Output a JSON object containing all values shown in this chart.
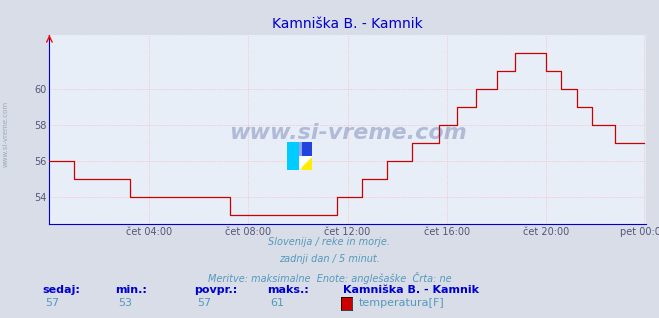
{
  "title": "Kamniška B. - Kamnik",
  "title_color": "#0000cc",
  "bg_color": "#d8dde8",
  "plot_bg_color": "#e8eef8",
  "grid_color": "#ffaaaa",
  "grid_color_minor": "#ffe0e0",
  "line_color": "#cc0000",
  "tick_label_color": "#555577",
  "x_tick_labels": [
    "čet 04:00",
    "čet 08:00",
    "čet 12:00",
    "čet 16:00",
    "čet 20:00",
    "pet 00:00"
  ],
  "x_tick_positions": [
    48,
    96,
    144,
    192,
    240,
    287
  ],
  "y_ticks": [
    54,
    56,
    58,
    60
  ],
  "ylim": [
    52.5,
    63.0
  ],
  "xlim": [
    0,
    288
  ],
  "subtitle_color": "#5599bb",
  "footer_labels": [
    "sedaj:",
    "min.:",
    "povpr.:",
    "maks.:"
  ],
  "footer_values": [
    "57",
    "53",
    "57",
    "61"
  ],
  "footer_label_color": "#0000cc",
  "footer_value_color": "#5599bb",
  "legend_title": "Kamniška B. - Kamnik",
  "legend_label": "temperatura[F]",
  "legend_color": "#cc0000",
  "watermark_text": "www.si-vreme.com",
  "watermark_color": "#334488",
  "left_watermark": "www.si-vreme.com",
  "left_watermark_color": "#99aabb",
  "spine_color": "#0000cc"
}
